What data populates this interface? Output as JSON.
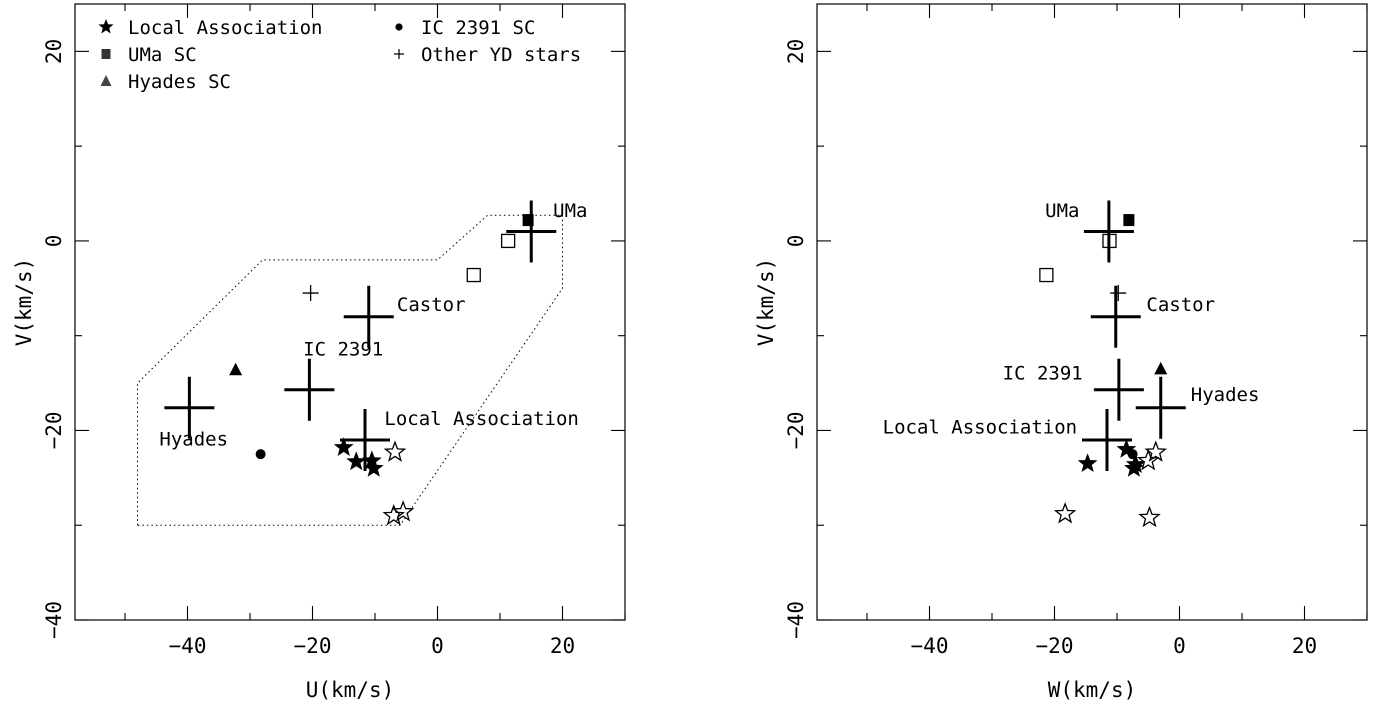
{
  "chart_data": [
    {
      "type": "scatter",
      "xlabel": "U(km/s)",
      "ylabel": "V(km/s)",
      "xlim": [
        -58,
        30
      ],
      "ylim": [
        -40,
        25
      ],
      "xticks": [
        -40,
        -20,
        0,
        20
      ],
      "yticks": [
        -40,
        -20,
        0,
        20
      ],
      "xtick_labels": [
        "−40",
        "−20",
        "0",
        "20"
      ],
      "ytick_labels": [
        "−40",
        "−20",
        "0",
        "20"
      ],
      "grid": false,
      "legend": {
        "placement": "top",
        "entries": [
          {
            "label": "Local Association",
            "marker": "star-filled"
          },
          {
            "label": "UMa SC",
            "marker": "square-filled"
          },
          {
            "label": "Hyades SC",
            "marker": "triangle-filled"
          },
          {
            "label": "IC 2391 SC",
            "marker": "circle-filled"
          },
          {
            "label": "Other YD stars",
            "marker": "plus-small"
          }
        ]
      },
      "region_polygon": [
        [
          -48,
          -30
        ],
        [
          -48,
          -15
        ],
        [
          -28,
          -2
        ],
        [
          0,
          -2
        ],
        [
          8,
          2.7
        ],
        [
          20,
          2.7
        ],
        [
          20,
          -5
        ],
        [
          -6,
          -30
        ]
      ],
      "centers": [
        {
          "name": "UMa",
          "x": 15,
          "y": 1
        },
        {
          "name": "Castor",
          "x": -11,
          "y": -8
        },
        {
          "name": "IC 2391",
          "x": -20.5,
          "y": -15.7
        },
        {
          "name": "Hyades",
          "x": -39.7,
          "y": -17.6
        },
        {
          "name": "Local Association",
          "x": -11.6,
          "y": -21
        }
      ],
      "annotations": [
        {
          "text": "UMa",
          "x": 18.5,
          "y": 2.5
        },
        {
          "text": "Castor",
          "x": -6.5,
          "y": -7.4
        },
        {
          "text": "IC 2391",
          "x": -21.5,
          "y": -12.1
        },
        {
          "text": "Local Association",
          "x": -8.5,
          "y": -19.4
        },
        {
          "text": "Hyades",
          "x": -44.5,
          "y": -21.6
        }
      ],
      "series": [
        {
          "marker": "star-filled",
          "points": [
            [
              -15,
              -21.8
            ],
            [
              -13,
              -23.3
            ],
            [
              -10.5,
              -23.2
            ],
            [
              -10.2,
              -24
            ]
          ]
        },
        {
          "marker": "star-open",
          "points": [
            [
              -6.8,
              -22.3
            ],
            [
              -7,
              -29
            ],
            [
              -5.5,
              -28.6
            ]
          ]
        },
        {
          "marker": "square-filled",
          "points": [
            [
              14.5,
              2.2
            ]
          ]
        },
        {
          "marker": "square-open",
          "points": [
            [
              11.3,
              0
            ],
            [
              5.8,
              -3.6
            ]
          ]
        },
        {
          "marker": "triangle-filled",
          "points": [
            [
              -32.3,
              -13.6
            ]
          ]
        },
        {
          "marker": "circle-filled",
          "points": [
            [
              -28.3,
              -22.5
            ]
          ]
        },
        {
          "marker": "plus-small",
          "points": [
            [
              -20.3,
              -5.5
            ]
          ]
        }
      ]
    },
    {
      "type": "scatter",
      "xlabel": "W(km/s)",
      "ylabel": "V(km/s)",
      "xlim": [
        -58,
        30
      ],
      "ylim": [
        -40,
        25
      ],
      "xticks": [
        -40,
        -20,
        0,
        20
      ],
      "yticks": [
        -40,
        -20,
        0,
        20
      ],
      "xtick_labels": [
        "−40",
        "−20",
        "0",
        "20"
      ],
      "ytick_labels": [
        "−40",
        "−20",
        "0",
        "20"
      ],
      "grid": false,
      "centers": [
        {
          "name": "UMa",
          "x": -11.3,
          "y": 1
        },
        {
          "name": "Castor",
          "x": -10.2,
          "y": -8
        },
        {
          "name": "IC 2391",
          "x": -9.7,
          "y": -15.7
        },
        {
          "name": "Hyades",
          "x": -3,
          "y": -17.6
        },
        {
          "name": "Local Association",
          "x": -11.6,
          "y": -21
        }
      ],
      "annotations": [
        {
          "text": "UMa",
          "x": -21.5,
          "y": 2.5
        },
        {
          "text": "Castor",
          "x": -5.3,
          "y": -7.4
        },
        {
          "text": "IC 2391",
          "x": -28.3,
          "y": -14.6
        },
        {
          "text": "Local Association",
          "x": -47.5,
          "y": -20.3
        },
        {
          "text": "Hyades",
          "x": 1.8,
          "y": -16.9
        }
      ],
      "series": [
        {
          "marker": "star-filled",
          "points": [
            [
              -14.7,
              -23.5
            ],
            [
              -8.5,
              -22
            ],
            [
              -7,
              -23.6
            ],
            [
              -7.3,
              -24
            ]
          ]
        },
        {
          "marker": "star-open",
          "points": [
            [
              -3.8,
              -22.3
            ],
            [
              -5,
              -23.2
            ],
            [
              -18.3,
              -28.8
            ],
            [
              -4.8,
              -29.2
            ]
          ]
        },
        {
          "marker": "square-filled",
          "points": [
            [
              -8.1,
              2.2
            ]
          ]
        },
        {
          "marker": "square-open",
          "points": [
            [
              -11.2,
              0
            ],
            [
              -21.3,
              -3.6
            ]
          ]
        },
        {
          "marker": "triangle-filled",
          "points": [
            [
              -3,
              -13.5
            ]
          ]
        },
        {
          "marker": "circle-filled",
          "points": [
            [
              -7.5,
              -22.5
            ]
          ]
        },
        {
          "marker": "plus-small",
          "points": [
            [
              -9.8,
              -5.5
            ]
          ]
        }
      ]
    }
  ]
}
